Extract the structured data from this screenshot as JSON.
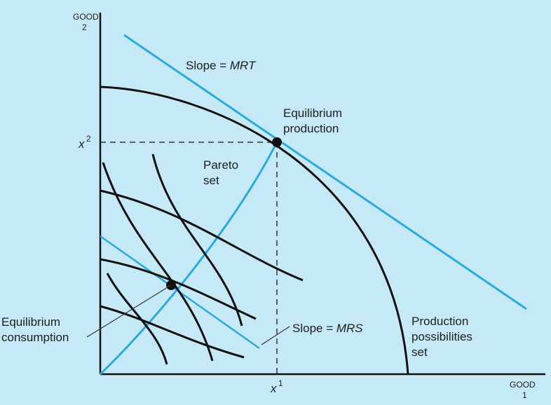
{
  "axes": {
    "y_label": "GOOD",
    "y_subscript": "2",
    "x_label": "GOOD",
    "x_subscript": "1",
    "x_tick_var": "x",
    "x_tick_sup": "1",
    "y_tick_var": "x",
    "y_tick_sup": "2"
  },
  "labels": {
    "slope_mrt_prefix": "Slope = ",
    "slope_mrt_var": "MRT",
    "equilibrium_production_line1": "Equilibrium",
    "equilibrium_production_line2": "production",
    "pareto_line1": "Pareto",
    "pareto_line2": "set",
    "equilibrium_consumption_line1": "Equilibrium",
    "equilibrium_consumption_line2": "consumption",
    "slope_mrs_prefix": "Slope = ",
    "slope_mrs_var": "MRS",
    "ppf_line1": "Production",
    "ppf_line2": "possibilities",
    "ppf_line3": "set"
  },
  "colors": {
    "background": "#c6e9f8",
    "curve": "#111111",
    "accent": "#2aa9de",
    "guide": "#333333"
  }
}
